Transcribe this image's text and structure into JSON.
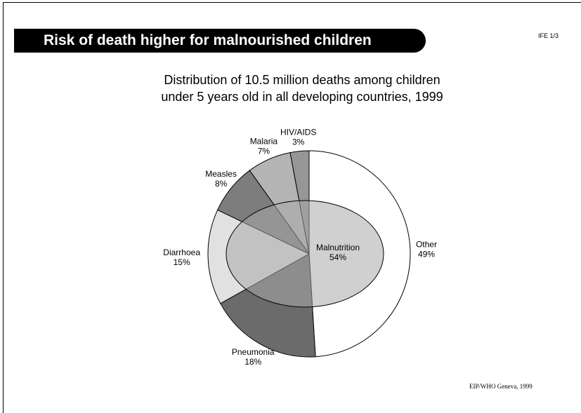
{
  "slide": {
    "title": "Risk of death higher for malnourished children",
    "code": "IFE 1/3",
    "subtitle_lines": [
      "Distribution of 10.5 million deaths among children",
      "under 5 years old in all developing countries, 1999"
    ],
    "credit": "EIP/WHO Geneva, 1999"
  },
  "chart_data": {
    "type": "pie",
    "title": "Distribution of 10.5 million deaths among children under 5 years old in all developing countries, 1999",
    "slices": [
      {
        "label": "Other",
        "value": 49,
        "pct_label": "49%",
        "color": "#ffffff"
      },
      {
        "label": "Pneumonia",
        "value": 18,
        "pct_label": "18%",
        "color": "#6b6b6b"
      },
      {
        "label": "Diarrhoea",
        "value": 15,
        "pct_label": "15%",
        "color": "#e1e1e1"
      },
      {
        "label": "Measles",
        "value": 8,
        "pct_label": "8%",
        "color": "#7d7d7d"
      },
      {
        "label": "Malaria",
        "value": 7,
        "pct_label": "7%",
        "color": "#b4b4b4"
      },
      {
        "label": "HIV/AIDS",
        "value": 3,
        "pct_label": "3%",
        "color": "#969696"
      }
    ],
    "overlay": {
      "label": "Malnutrition",
      "value": 54,
      "pct_label": "54%",
      "color": "#a9a9a9"
    }
  }
}
